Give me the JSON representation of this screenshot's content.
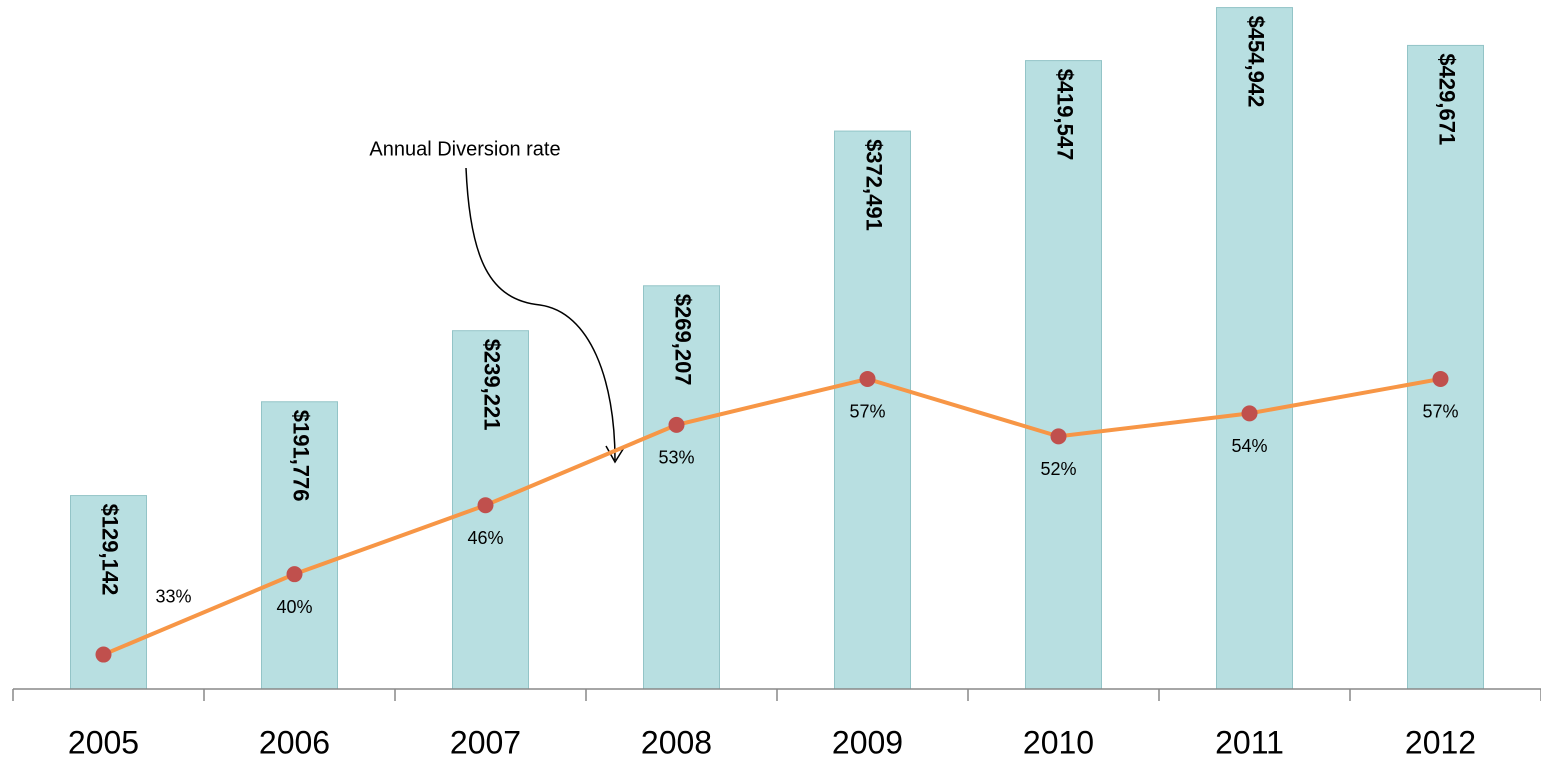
{
  "chart_data": {
    "type": "bar",
    "annotation": "Annual Diversion rate",
    "categories": [
      "2005",
      "2006",
      "2007",
      "2008",
      "2009",
      "2010",
      "2011",
      "2012"
    ],
    "series": [
      {
        "type": "bar",
        "color": "#b8dfe1",
        "values": [
          129142,
          191776,
          239221,
          269207,
          372491,
          419547,
          454942,
          429671
        ],
        "value_labels": [
          "$129,142",
          "$191,776",
          "$239,221",
          "$269,207",
          "$372,491",
          "$419,547",
          "$454,942",
          "$429,671"
        ]
      },
      {
        "type": "line",
        "axis": "y2",
        "color": "#f79646",
        "marker_color": "#c0504d",
        "values": [
          33,
          40,
          46,
          53,
          57,
          52,
          54,
          57
        ],
        "value_labels": [
          "33%",
          "40%",
          "46%",
          "53%",
          "57%",
          "52%",
          "54%",
          "57%"
        ]
      }
    ],
    "ylim": [
      0,
      460000
    ],
    "y2lim": [
      30,
      90
    ]
  }
}
